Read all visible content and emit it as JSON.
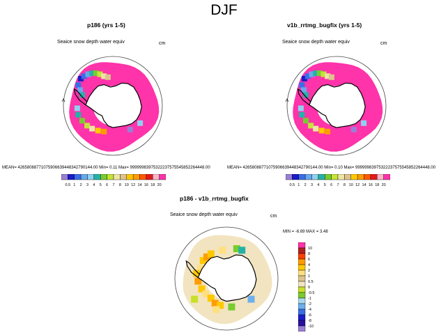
{
  "title": "DJF",
  "colors": {
    "land": "#ffffff",
    "coast": "#000000",
    "circle": "#444444",
    "snow_ring": "#ff33aa",
    "diff_background": "#f2e4c0"
  },
  "panels": [
    {
      "title": "p186 (yrs 1-5)",
      "variable": "Seaice snow depth water equiv",
      "units": "cm",
      "stats": "MEAN= 4265808877107590663944834279014 4.00  Min=   0.11  Max= 999999839753222375755458522644 48.00",
      "stats_text": "MEAN= 42658088771075906639448342790144.00  Min=   0.11  Max= 99999983975322237575545852264448.00"
    },
    {
      "title": "v1b_rrtmg_bugfix (yrs 1-5)",
      "variable": "Seaice snow depth water equiv",
      "units": "cm",
      "stats_text": "MEAN= 42658088771075906639448342790144.00  Min=   0.10  Max= 99999983975322237575545852264448.00"
    },
    {
      "title": "p186 - v1b_rrtmg_bugfix",
      "variable": "Seaice snow depth water equiv",
      "units": "cm",
      "stats_text": "MIN =  -6.69 MAX =   3.48"
    }
  ],
  "colorbar_top": {
    "labels": [
      "0.5",
      "1",
      "2",
      "3",
      "4",
      "5",
      "6",
      "7",
      "8",
      "10",
      "12",
      "14",
      "16",
      "18",
      "20"
    ],
    "colors": [
      "#9a7fd6",
      "#1b1bc9",
      "#3a6ee6",
      "#68a8ee",
      "#8ed2f0",
      "#24b2a8",
      "#78cc2e",
      "#c6e33a",
      "#eee6a4",
      "#dcc48e",
      "#ffc800",
      "#ff9c00",
      "#ff5a00",
      "#e41a1c",
      "#ffb6c8",
      "#ff33aa"
    ]
  },
  "colorbar_diff": {
    "labels": [
      "10",
      "8",
      "6",
      "4",
      "2",
      "1",
      "0.5",
      "0",
      "-0.5",
      "-1",
      "-2",
      "-4",
      "-6",
      "-8",
      "-10"
    ],
    "colors": [
      "#ff33aa",
      "#b02020",
      "#ff4000",
      "#ff9c00",
      "#ffc800",
      "#ffe080",
      "#dcc48e",
      "#f2e4c0",
      "#c8e02a",
      "#78cc2e",
      "#a8d8ee",
      "#6eb0ee",
      "#3a6ee6",
      "#1b1bc9",
      "#2a10a0",
      "#9a7fd6"
    ]
  }
}
